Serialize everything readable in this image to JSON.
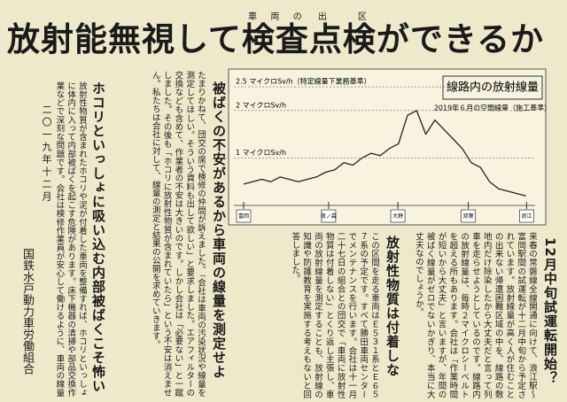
{
  "title": {
    "parts": [
      {
        "text": "放射能無視して"
      },
      {
        "text": "検査",
        "ruby": "車両の"
      },
      {
        "text": "点検",
        "ruby": "出区"
      },
      {
        "text": "ができるか"
      }
    ]
  },
  "chart_data": {
    "type": "line",
    "title": "線路内の放射線量",
    "subtitle": "2019年６月の空間線量（施工基準）",
    "x": [
      0,
      0.75,
      1.5,
      2.25,
      3,
      3.75,
      4.5,
      5.25,
      6,
      6.75,
      7.5,
      8.25,
      9,
      9.75,
      10.5,
      11.25,
      12,
      12.75,
      13.5,
      14.25,
      15,
      15.75,
      16.5,
      17.25,
      18,
      18.75,
      19.5,
      20.25,
      21,
      21.75,
      22.5,
      23.25
    ],
    "series": [
      {
        "color": "#222222",
        "values": [
          0.45,
          0.5,
          0.55,
          0.5,
          0.6,
          0.55,
          0.5,
          0.55,
          0.6,
          0.7,
          0.75,
          0.9,
          0.85,
          1.0,
          1.1,
          1.05,
          1.2,
          1.3,
          1.9,
          2.0,
          1.5,
          1.8,
          1.6,
          1.4,
          1.2,
          0.9,
          0.8,
          0.5,
          0.35,
          0.3,
          0.25,
          0.2
        ]
      }
    ],
    "xlim": [
      -0.8,
      24
    ],
    "ylim": [
      0,
      2.8
    ],
    "yticks": [
      {
        "value": 1,
        "label": "1 マイクロSv/h"
      },
      {
        "value": 2,
        "label": "2 マイクロSv/h"
      },
      {
        "value": 2.5,
        "label": "2.5 マイクロSv/h（特定線量下業務基準）"
      }
    ],
    "grid": true,
    "stations": {
      "names": [
        "富岡",
        "夜ノ森",
        "大野",
        "双葉",
        "浪江"
      ],
      "x": [
        0,
        7,
        12.7,
        18.5,
        23.3
      ]
    }
  },
  "sections": [
    {
      "heading": "12月中旬試運転開始？",
      "body": "来春の常磐線全線開通に向けて、浪江駅～富岡駅間の試運転が十二月中旬から予定されています。放射線量が高く人が住むことの出来ない帰還困難区域の中を、線路の敷地内だけ除染したから大丈夫だと言って列車を走らせようとしているのです。線路内の放射線量は、毎時２マイクロシーベルトを超える所もあります。会社は「作業時間が短いから大丈夫」と言いますが、年間の被ばく線量がゼロでないかぎり、本当に大丈夫なのでしょうか。"
    },
    {
      "heading": "放射性物質は付着しない？",
      "body": "この区間を走る車両はＥ５３１系とＥ６５７系の予定です。すべて勝田車両センターでメンテナンスを行います。会社は十一月二十七日の組合との団交で「車両に放射性物質は付着しない」とくり返し主張し、車両の放射線量を測定することも、放射線の知識や防護教育を実施する考えもないと回答しました。"
    },
    {
      "heading": "被ばくの不安があるから車両の線量を測定せよ",
      "body": "たまりかねて、団交の席で検修の仲間が訴えました。「会社は車両の汚染状況や線量を測定してほしい。そういう資料も出して欲しい」と要求しました。エアフィルターの交換なども含めて、作業者の不安は大きいのです。しかし会社は「必要ない」と一蹴しました。その後も「ホコリに放射性物質が含まれていたら」という不安は消えません。私たちは会社に対して、線量の測定と結果の公開を求めていきます。"
    },
    {
      "heading": "ホコリといっしょに吸い込む内部被ばくこそ怖い",
      "body": "放射性物質が含まれたホコリや泥が付着した車両を整備すれば、ホコリといっしょに体内に入って内部被ばくを起こす危険があります。床下機器の清掃や部品交換作業などで深刻な問題です。会社は検修作業員が安心して働けるように、車両の線量を測定し、情報を公開すべきです。"
    }
  ],
  "date": "二〇一九年十二月",
  "organization": "国鉄水戸動力車労働組合"
}
